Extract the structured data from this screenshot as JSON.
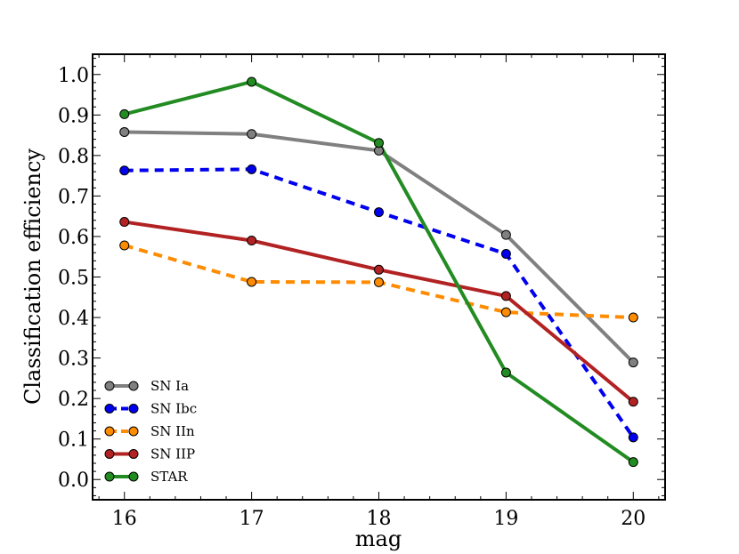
{
  "chart_data": {
    "type": "line",
    "title": "",
    "xlabel": "mag",
    "ylabel": "Classification efficiency",
    "x": [
      16,
      17,
      18,
      19,
      20
    ],
    "xlim": [
      15.75,
      20.25
    ],
    "ylim": [
      -0.05,
      1.05
    ],
    "xticks": [
      "16",
      "17",
      "18",
      "19",
      "20"
    ],
    "yticks": [
      "0.0",
      "0.1",
      "0.2",
      "0.3",
      "0.4",
      "0.5",
      "0.6",
      "0.7",
      "0.8",
      "0.9",
      "1.0"
    ],
    "legend_position": "lower-left",
    "series": [
      {
        "name": "SN Ia",
        "values": [
          0.858,
          0.853,
          0.812,
          0.604,
          0.289
        ],
        "color": "#808080",
        "dash": "solid"
      },
      {
        "name": "SN Ibc",
        "values": [
          0.763,
          0.766,
          0.66,
          0.557,
          0.104
        ],
        "color": "#0000ee",
        "dash": "dashed"
      },
      {
        "name": "SN IIn",
        "values": [
          0.578,
          0.488,
          0.487,
          0.413,
          0.4
        ],
        "color": "#ff8c00",
        "dash": "dashed"
      },
      {
        "name": "SN IIP",
        "values": [
          0.636,
          0.59,
          0.518,
          0.453,
          0.192
        ],
        "color": "#b22222",
        "dash": "solid"
      },
      {
        "name": "STAR",
        "values": [
          0.902,
          0.982,
          0.831,
          0.264,
          0.043
        ],
        "color": "#228b22",
        "dash": "solid"
      }
    ]
  }
}
